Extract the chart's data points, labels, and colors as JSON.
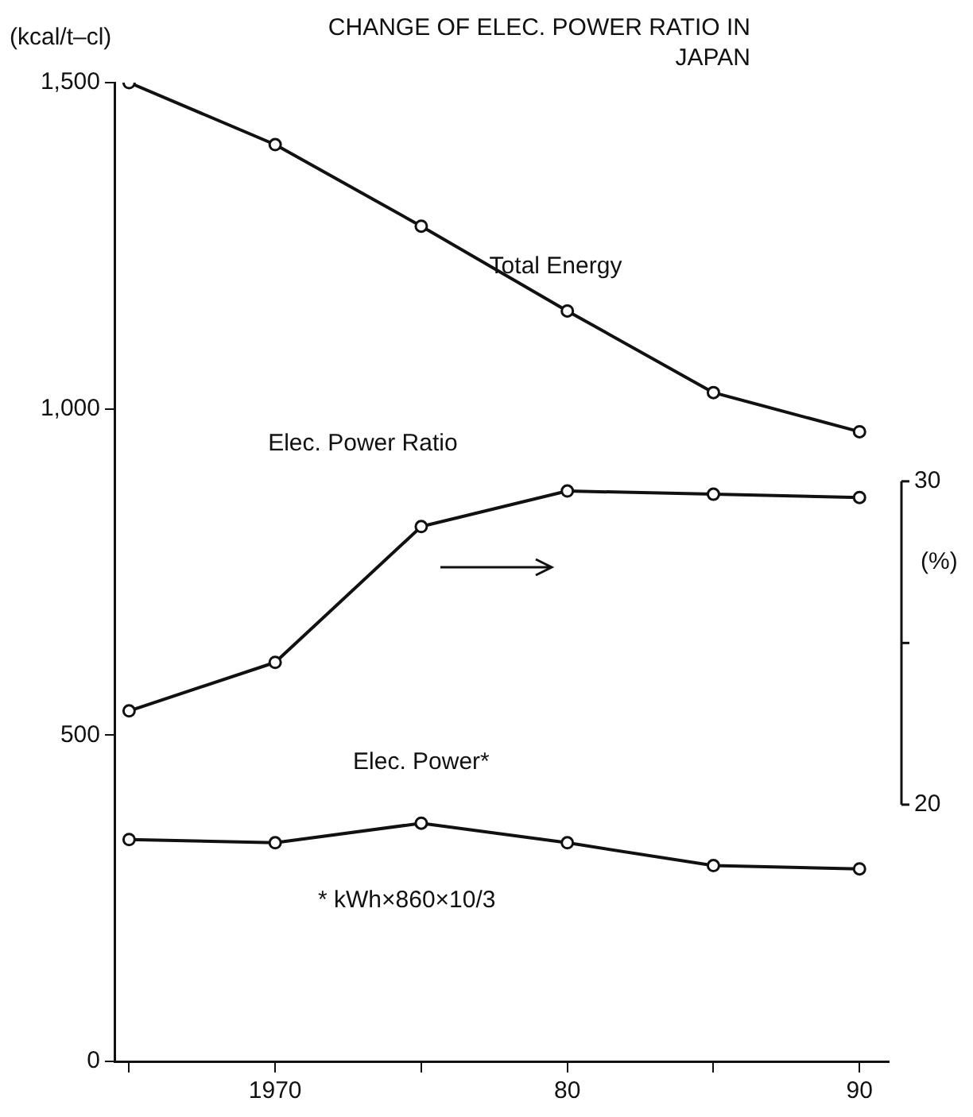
{
  "chart_data": {
    "type": "line",
    "title": "CHANGE OF ELEC. POWER RATIO IN JAPAN",
    "ylabel": "(kcal/t–cl)",
    "y2label": "(%)",
    "x": [
      1965,
      1970,
      1975,
      1980,
      1985,
      1990
    ],
    "xlim": [
      1964.5,
      1991
    ],
    "xticks": [
      {
        "value": 1965,
        "label": null
      },
      {
        "value": 1970,
        "label": "1970"
      },
      {
        "value": 1975,
        "label": null
      },
      {
        "value": 1980,
        "label": "80"
      },
      {
        "value": 1985,
        "label": null
      },
      {
        "value": 1990,
        "label": "90"
      }
    ],
    "ylim": [
      0,
      1500
    ],
    "yticks": [
      {
        "value": 0,
        "label": "0"
      },
      {
        "value": 500,
        "label": "500"
      },
      {
        "value": 1000,
        "label": "1,000"
      },
      {
        "value": 1500,
        "label": "1,500"
      }
    ],
    "y2lim": [
      12.06,
      42.33
    ],
    "y2ticks": [
      20,
      {
        "value": 25,
        "label": null
      },
      30
    ],
    "series": [
      {
        "name": "Total Energy",
        "color": "#111111",
        "values": [
          1500,
          1405,
          1280,
          1150,
          1025,
          965
        ]
      },
      {
        "name": "Elec. Power Ratio",
        "color": "#111111",
        "axis": "y2",
        "values": [
          22.9,
          24.4,
          28.6,
          29.7,
          29.6,
          29.5
        ]
      },
      {
        "name": "Elec. Power*",
        "color": "#111111",
        "values": [
          340,
          335,
          365,
          335,
          300,
          295
        ]
      }
    ],
    "annotations": [
      "* kWh×860×10/3"
    ],
    "marker": "circle",
    "line_style": "solid",
    "legend": false,
    "grid": false
  }
}
